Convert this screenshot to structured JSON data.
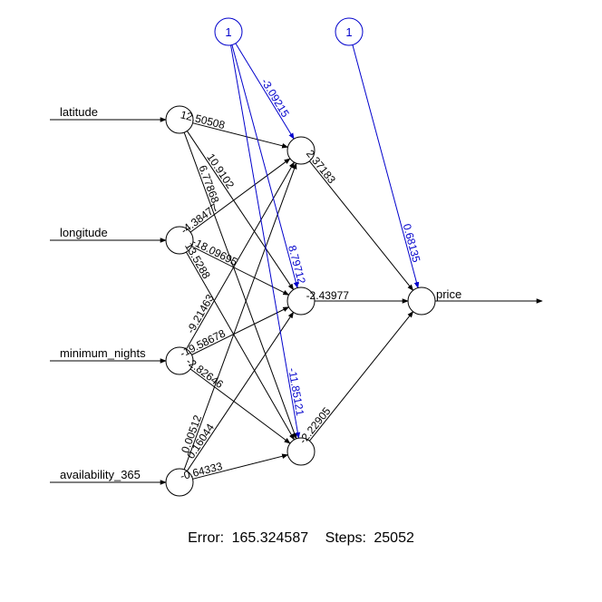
{
  "colors": {
    "weight": "#000000",
    "bias": "#0000cc",
    "background": "#ffffff"
  },
  "inputs": [
    {
      "label": "latitude"
    },
    {
      "label": "longitude"
    },
    {
      "label": "minimum_nights"
    },
    {
      "label": "availability_365"
    }
  ],
  "hidden_count": 3,
  "output": {
    "label": "price"
  },
  "bias_nodes": [
    {
      "label": "1"
    },
    {
      "label": "1"
    }
  ],
  "weights_input_hidden": [
    [
      "12.50508",
      "10.9102",
      "6.77868"
    ],
    [
      "-4.38477",
      "-18.09695",
      "13.5288"
    ],
    [
      "-9.21463",
      "-19.58678",
      "-2.82646"
    ],
    [
      "0.00512",
      "0.16044",
      "-0.64333"
    ]
  ],
  "bias_hidden": [
    "-3.09215",
    "8.79712",
    "-11.85121"
  ],
  "weights_hidden_output": [
    "2.37183",
    "-2.43977",
    "-2.22905"
  ],
  "bias_output": "0.68135",
  "footer": {
    "error_label": "Error:",
    "error_value": "165.324587",
    "steps_label": "Steps:",
    "steps_value": "25052"
  }
}
